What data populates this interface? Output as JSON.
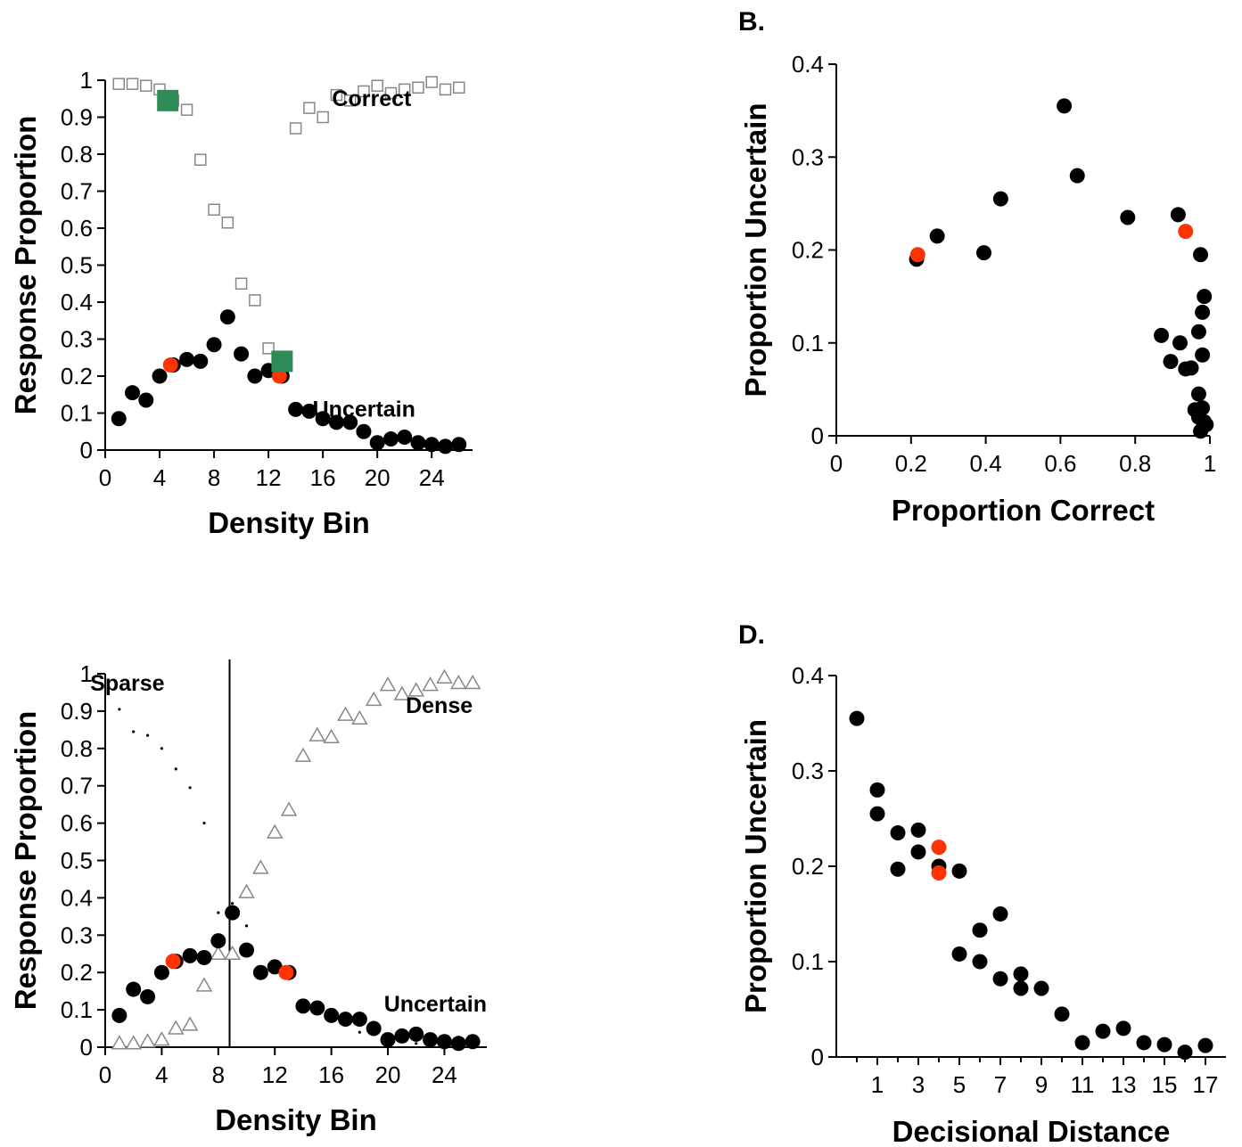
{
  "chart_data": [
    {
      "id": "A",
      "type": "scatter",
      "panel_label": "",
      "xlabel": "Density Bin",
      "ylabel": "Response Proportion",
      "xlim": [
        0,
        27
      ],
      "ylim": [
        0,
        1
      ],
      "xticks": [
        0,
        4,
        8,
        12,
        16,
        20,
        24
      ],
      "yticks": [
        0,
        0.1,
        0.2,
        0.3,
        0.4,
        0.5,
        0.6,
        0.7,
        0.8,
        0.9,
        1
      ],
      "ytick_labels": [
        "0",
        "0.1",
        "0.2",
        "0.3",
        "0.4",
        "0.5",
        "0.6",
        "0.7",
        "0.8",
        "0.9",
        "1"
      ],
      "annotations": [
        {
          "text": "Correct",
          "x": 22.5,
          "y": 0.93
        },
        {
          "text": "Uncertain",
          "x": 22.8,
          "y": 0.09
        }
      ],
      "series": [
        {
          "label": "Correct",
          "marker": "open-square",
          "color": "#888888",
          "x": [
            1,
            2,
            3,
            4,
            5,
            6,
            7,
            8,
            9,
            10,
            11,
            12,
            13,
            14,
            15,
            16,
            17,
            18,
            19,
            20,
            21,
            22,
            23,
            24,
            25,
            26
          ],
          "y": [
            0.99,
            0.99,
            0.985,
            0.975,
            0.945,
            0.92,
            0.785,
            0.65,
            0.615,
            0.45,
            0.405,
            0.275,
            0.22,
            0.87,
            0.925,
            0.9,
            0.96,
            0.945,
            0.97,
            0.985,
            0.965,
            0.975,
            0.98,
            0.995,
            0.975,
            0.98
          ]
        },
        {
          "label": "Uncertain",
          "marker": "filled-circle",
          "color": "#000000",
          "x": [
            1,
            2,
            3,
            4,
            5,
            6,
            7,
            8,
            9,
            10,
            11,
            12,
            13,
            14,
            15,
            16,
            17,
            18,
            19,
            20,
            21,
            22,
            23,
            24,
            25,
            26
          ],
          "y": [
            0.085,
            0.155,
            0.135,
            0.2,
            0.23,
            0.245,
            0.24,
            0.285,
            0.36,
            0.26,
            0.2,
            0.215,
            0.2,
            0.11,
            0.105,
            0.085,
            0.075,
            0.075,
            0.05,
            0.02,
            0.03,
            0.035,
            0.02,
            0.015,
            0.01,
            0.015
          ]
        },
        {
          "label": "",
          "marker": "filled-circle",
          "color": "#ff3300",
          "x": [
            4.8,
            12.8
          ],
          "y": [
            0.23,
            0.2
          ]
        },
        {
          "label": "",
          "marker": "filled-square",
          "color": "#2e8b57",
          "x": [
            4.6,
            13.0
          ],
          "y": [
            0.945,
            0.24
          ]
        }
      ]
    },
    {
      "id": "B",
      "type": "scatter",
      "panel_label": "B.",
      "xlabel": "Proportion Correct",
      "ylabel": "Proportion Uncertain",
      "xlim": [
        0,
        1
      ],
      "ylim": [
        0,
        0.4
      ],
      "xticks": [
        0,
        0.2,
        0.4,
        0.6,
        0.8,
        1
      ],
      "xtick_labels": [
        "0",
        "0.2",
        "0.4",
        "0.6",
        "0.8",
        "1"
      ],
      "yticks": [
        0,
        0.1,
        0.2,
        0.3,
        0.4
      ],
      "ytick_labels": [
        "0",
        "0.1",
        "0.2",
        "0.3",
        "0.4"
      ],
      "series": [
        {
          "label": "",
          "marker": "filled-circle",
          "color": "#000000",
          "x": [
            0.215,
            0.27,
            0.395,
            0.44,
            0.61,
            0.645,
            0.78,
            0.915,
            0.975,
            0.985,
            0.98,
            0.97,
            0.98,
            0.87,
            0.92,
            0.895,
            0.935,
            0.95,
            0.97,
            0.96,
            0.98,
            0.97,
            0.985,
            0.975,
            0.99
          ],
          "y": [
            0.19,
            0.215,
            0.197,
            0.255,
            0.355,
            0.28,
            0.235,
            0.238,
            0.195,
            0.15,
            0.133,
            0.112,
            0.087,
            0.108,
            0.1,
            0.08,
            0.072,
            0.073,
            0.045,
            0.028,
            0.03,
            0.02,
            0.015,
            0.005,
            0.012
          ]
        },
        {
          "label": "",
          "marker": "filled-circle",
          "color": "#ff3300",
          "x": [
            0.218,
            0.935
          ],
          "y": [
            0.195,
            0.22
          ]
        }
      ]
    },
    {
      "id": "C",
      "type": "scatter",
      "panel_label": "",
      "xlabel": "Density Bin",
      "ylabel": "Response Proportion",
      "xlim": [
        0,
        27
      ],
      "ylim": [
        0,
        1
      ],
      "xticks": [
        0,
        4,
        8,
        12,
        16,
        20,
        24
      ],
      "yticks": [
        0,
        0.1,
        0.2,
        0.3,
        0.4,
        0.5,
        0.6,
        0.7,
        0.8,
        0.9,
        1
      ],
      "ytick_labels": [
        "0",
        "0.1",
        "0.2",
        "0.3",
        "0.4",
        "0.5",
        "0.6",
        "0.7",
        "0.8",
        "0.9",
        "1"
      ],
      "criterion_x": 8.8,
      "annotations": [
        {
          "text": "Sparse",
          "x": 4.2,
          "y": 0.955
        },
        {
          "text": "Dense",
          "x": 26.0,
          "y": 0.895
        },
        {
          "text": "Uncertain",
          "x": 27.0,
          "y": 0.095
        }
      ],
      "series": [
        {
          "label": "Sparse",
          "marker": "dot",
          "color": "#000000",
          "x": [
            1,
            2,
            3,
            4,
            5,
            6,
            7,
            8,
            9,
            10,
            11,
            12,
            13,
            14,
            15,
            16,
            17,
            18,
            19,
            20,
            21,
            22,
            23,
            24,
            25,
            26
          ],
          "y": [
            0.905,
            0.845,
            0.835,
            0.8,
            0.745,
            0.695,
            0.6,
            0.36,
            0.385,
            0.325,
            0.2,
            0.205,
            0.2,
            0.105,
            0.095,
            0.075,
            0.065,
            0.04,
            0.035,
            0.025,
            0.02,
            0.01,
            0.01,
            0.005,
            0.005,
            0.005
          ]
        },
        {
          "label": "Dense",
          "marker": "open-triangle",
          "color": "#888888",
          "x": [
            1,
            2,
            3,
            4,
            5,
            6,
            7,
            8,
            9,
            10,
            11,
            12,
            13,
            14,
            15,
            16,
            17,
            18,
            19,
            20,
            21,
            22,
            23,
            24,
            25,
            26
          ],
          "y": [
            0.01,
            0.01,
            0.015,
            0.02,
            0.05,
            0.06,
            0.165,
            0.25,
            0.25,
            0.415,
            0.48,
            0.575,
            0.635,
            0.78,
            0.835,
            0.83,
            0.89,
            0.88,
            0.93,
            0.97,
            0.945,
            0.955,
            0.97,
            0.99,
            0.975,
            0.975
          ]
        },
        {
          "label": "Uncertain",
          "marker": "filled-circle",
          "color": "#000000",
          "x": [
            1,
            2,
            3,
            4,
            5,
            6,
            7,
            8,
            9,
            10,
            11,
            12,
            13,
            14,
            15,
            16,
            17,
            18,
            19,
            20,
            21,
            22,
            23,
            24,
            25,
            26
          ],
          "y": [
            0.085,
            0.155,
            0.135,
            0.2,
            0.23,
            0.245,
            0.24,
            0.285,
            0.36,
            0.26,
            0.2,
            0.215,
            0.2,
            0.11,
            0.105,
            0.085,
            0.075,
            0.075,
            0.05,
            0.02,
            0.03,
            0.035,
            0.02,
            0.015,
            0.01,
            0.015
          ]
        },
        {
          "label": "",
          "marker": "filled-circle",
          "color": "#ff3300",
          "x": [
            4.8,
            12.8
          ],
          "y": [
            0.23,
            0.2
          ]
        }
      ]
    },
    {
      "id": "D",
      "type": "scatter",
      "panel_label": "D.",
      "xlabel": "Decisional Distance",
      "ylabel": "Proportion Uncertain",
      "xlim": [
        -1,
        18
      ],
      "ylim": [
        0,
        0.4
      ],
      "xticks": [
        1,
        3,
        5,
        7,
        9,
        11,
        13,
        15,
        17
      ],
      "xminor": [
        0,
        2,
        4,
        6,
        8,
        10,
        12,
        14,
        16
      ],
      "yticks": [
        0,
        0.1,
        0.2,
        0.3,
        0.4
      ],
      "ytick_labels": [
        "0",
        "0.1",
        "0.2",
        "0.3",
        "0.4"
      ],
      "series": [
        {
          "label": "",
          "marker": "filled-circle",
          "color": "#000000",
          "x": [
            0,
            1,
            1,
            2,
            2,
            3,
            3,
            4,
            5,
            5,
            6,
            6,
            7,
            7,
            8,
            8,
            9,
            10,
            11,
            12,
            13,
            14,
            15,
            16,
            17
          ],
          "y": [
            0.355,
            0.28,
            0.255,
            0.235,
            0.197,
            0.238,
            0.215,
            0.2,
            0.195,
            0.108,
            0.133,
            0.1,
            0.15,
            0.082,
            0.087,
            0.072,
            0.072,
            0.045,
            0.015,
            0.027,
            0.03,
            0.015,
            0.013,
            0.005,
            0.012
          ]
        },
        {
          "label": "",
          "marker": "filled-circle",
          "color": "#ff3300",
          "x": [
            4,
            4
          ],
          "y": [
            0.22,
            0.193
          ]
        }
      ]
    }
  ]
}
